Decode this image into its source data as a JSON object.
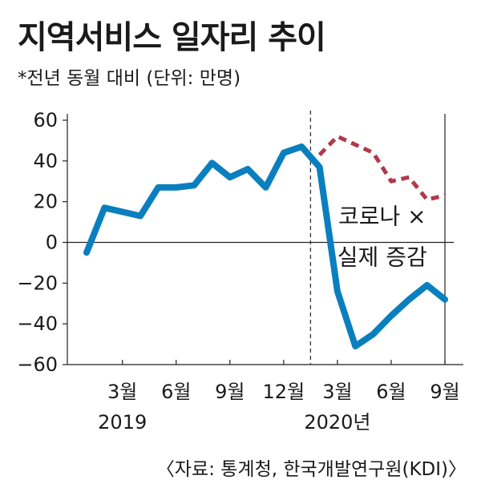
{
  "chart_data": {
    "type": "line",
    "title": "지역서비스 일자리 추이",
    "subtitle": "*전년 동월 대비 (단위: 만명)",
    "source": "〈자료: 통계청, 한국개발연구원(KDI)〉",
    "ylim": [
      -60,
      60
    ],
    "y_ticks": [
      60,
      40,
      20,
      0,
      -20,
      -40,
      -60
    ],
    "y_tick_labels": [
      "60",
      "40",
      "20",
      "0",
      "−20",
      "−40",
      "−60"
    ],
    "x_ticks": [
      {
        "index": 3,
        "label": "3월"
      },
      {
        "index": 6,
        "label": "6월"
      },
      {
        "index": 9,
        "label": "9월"
      },
      {
        "index": 12,
        "label": "12월"
      },
      {
        "index": 15,
        "label": "3월"
      },
      {
        "index": 18,
        "label": "6월"
      },
      {
        "index": 21,
        "label": "9월"
      }
    ],
    "year_labels": [
      {
        "index": 3,
        "label": "2019"
      },
      {
        "index": 15,
        "label": "2020년"
      }
    ],
    "divider_index": 13.5,
    "grid": false,
    "series": [
      {
        "style": "solid",
        "color": "#0a7fbf",
        "x": [
          1,
          2,
          3,
          4,
          5,
          6,
          7,
          8,
          9,
          10,
          11,
          12,
          13,
          14,
          15,
          16,
          17,
          18,
          19,
          20,
          21
        ],
        "values": [
          -5,
          17,
          15,
          13,
          27,
          27,
          28,
          39,
          32,
          36,
          27,
          44,
          47,
          37,
          -24,
          -51,
          -45,
          -36,
          -28,
          -21,
          -28
        ]
      },
      {
        "style": "dashed",
        "color": "#b03a4a",
        "x": [
          14,
          15,
          16,
          17,
          18,
          19,
          20,
          21
        ],
        "values": [
          43,
          52,
          48,
          44,
          30,
          32,
          21,
          23
        ]
      }
    ],
    "annotations": [
      {
        "label": "코로나 ×",
        "index": 17.5,
        "value": 9
      },
      {
        "label": "실제 증감",
        "index": 17.5,
        "value": -11
      }
    ]
  }
}
